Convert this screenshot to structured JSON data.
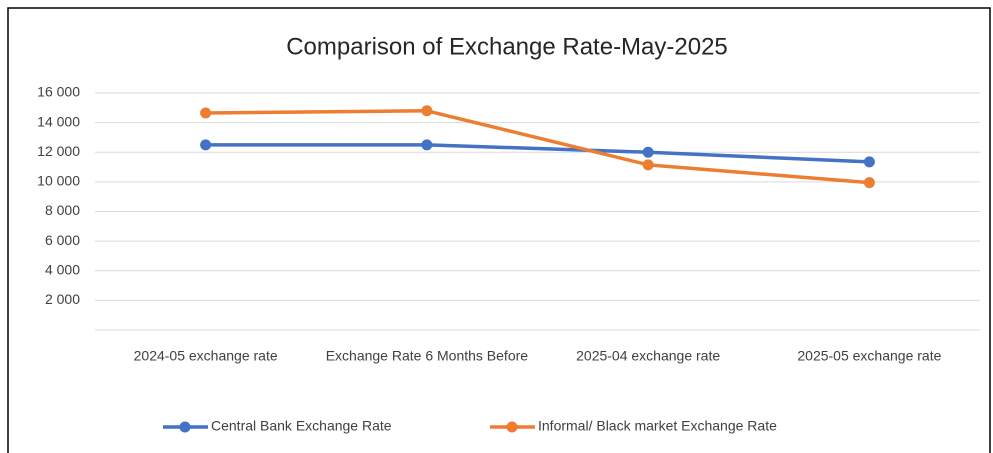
{
  "chart_data": {
    "type": "line",
    "title": "Comparison of Exchange Rate-May-2025",
    "categories": [
      "2024-05 exchange rate",
      "Exchange Rate 6 Months Before",
      "2025-04 exchange rate",
      "2025-05 exchange rate"
    ],
    "series": [
      {
        "name": "Central Bank Exchange Rate",
        "color": "#4472c4",
        "values": [
          12500,
          12500,
          12000,
          11350
        ]
      },
      {
        "name": "Informal/ Black market Exchange Rate",
        "color": "#ed7d31",
        "values": [
          14650,
          14800,
          11150,
          9950
        ]
      }
    ],
    "ylim": [
      0,
      16000
    ],
    "yticks": [
      {
        "value": 2000,
        "label": "2 000"
      },
      {
        "value": 4000,
        "label": "4 000"
      },
      {
        "value": 6000,
        "label": "6 000"
      },
      {
        "value": 8000,
        "label": "8 000"
      },
      {
        "value": 10000,
        "label": "10 000"
      },
      {
        "value": 12000,
        "label": "12 000"
      },
      {
        "value": 14000,
        "label": "14 000"
      },
      {
        "value": 16000,
        "label": "16 000"
      }
    ],
    "grid": true,
    "legend": "bottom"
  }
}
